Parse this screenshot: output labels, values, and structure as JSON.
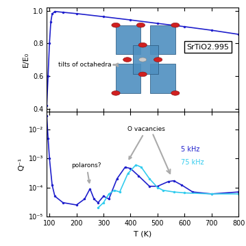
{
  "chart_data": [
    {
      "type": "line",
      "title": "SrTiO2.995",
      "ylabel": "E/E₀",
      "annotations": [
        "tilts of octahedra"
      ],
      "x": [
        90,
        95,
        100,
        105,
        110,
        120,
        150,
        200,
        300,
        400,
        500,
        600,
        700,
        800
      ],
      "series": [
        {
          "name": "E/E₀",
          "color": "#1f1fcc",
          "marker": "o",
          "values": [
            0.42,
            0.6,
            0.8,
            0.93,
            0.98,
            0.995,
            0.99,
            0.982,
            0.963,
            0.943,
            0.922,
            0.902,
            0.88,
            0.855
          ]
        }
      ],
      "xlim": [
        90,
        800
      ],
      "xticks": [
        100,
        200,
        300,
        400,
        500,
        600,
        700,
        800
      ],
      "ylim": [
        0.38,
        1.02
      ],
      "yticks": [
        0.4,
        0.6,
        0.8,
        1.0
      ],
      "tick_labels": "y"
    },
    {
      "type": "line",
      "xlabel": "T (K)",
      "ylabel": "Q⁻¹",
      "log": "y",
      "annotations": [
        "polarons?",
        "O vacancies"
      ],
      "series": [
        {
          "name": "5 kHz",
          "color": "#1f1fcc",
          "marker": "o",
          "x": [
            90,
            95,
            100,
            110,
            120,
            150,
            200,
            230,
            250,
            265,
            280,
            300,
            320,
            350,
            380,
            400,
            430,
            470,
            500,
            540,
            560,
            590,
            630,
            700,
            800
          ],
          "values": [
            0.03,
            0.005,
            0.001,
            0.00012,
            5e-05,
            3e-05,
            2.5e-05,
            4e-05,
            9e-05,
            4e-05,
            3e-05,
            5e-05,
            4e-05,
            0.0002,
            0.0005,
            0.00045,
            0.00025,
            0.00011,
            0.00011,
            0.00016,
            0.00017,
            0.00012,
            7e-05,
            6e-05,
            7e-05
          ]
        },
        {
          "name": "75 kHz",
          "color": "#33ccee",
          "marker": "o",
          "x": [
            280,
            300,
            320,
            340,
            360,
            390,
            420,
            440,
            470,
            500,
            520,
            560,
            600,
            700,
            800
          ],
          "values": [
            2e-05,
            3e-05,
            6e-05,
            8e-05,
            7e-05,
            0.0003,
            0.0006,
            0.0005,
            0.0002,
            0.0001,
            8e-05,
            7e-05,
            6.5e-05,
            6e-05,
            6e-05
          ]
        }
      ],
      "xlim": [
        90,
        800
      ],
      "xticks": [
        100,
        200,
        300,
        400,
        500,
        600,
        700,
        800
      ],
      "ylim": [
        1e-05,
        0.04
      ],
      "yticks": [
        {
          "value": 1e-05,
          "label": "10⁻⁵"
        },
        {
          "value": 0.0001,
          "label": "10⁻⁴"
        },
        {
          "value": 0.001,
          "label": "10⁻³"
        },
        {
          "value": 0.01,
          "label": "10⁻²"
        }
      ]
    }
  ]
}
